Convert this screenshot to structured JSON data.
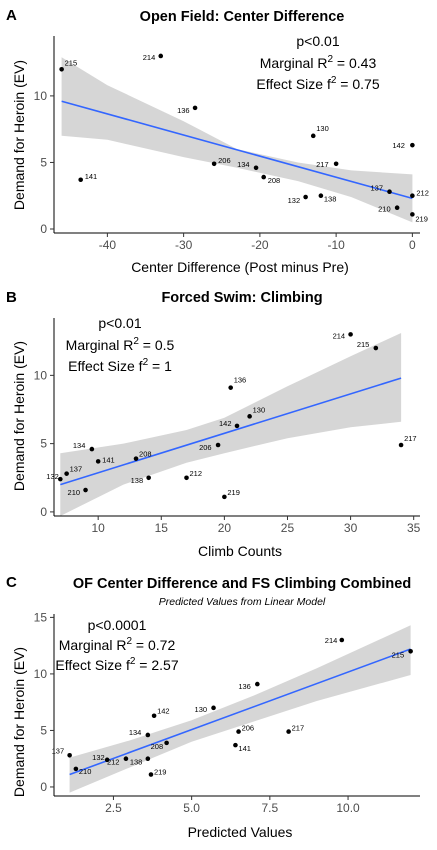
{
  "chart_data": [
    {
      "panel": "A",
      "type": "scatter",
      "title": "Open Field: Center Difference",
      "subtitle": "",
      "xlabel": "Center Difference (Post minus Pre)",
      "ylabel": "Demand for Heroin (EV)",
      "xlim": [
        -47,
        1
      ],
      "ylim": [
        -0.3,
        14.5
      ],
      "xticks": [
        -40,
        -30,
        -20,
        -10,
        0
      ],
      "yticks": [
        0,
        5,
        10
      ],
      "xtick_labels": [
        "-40",
        "-30",
        "-20",
        "-10",
        "0"
      ],
      "ytick_labels": [
        "0",
        "5",
        "10"
      ],
      "stats": {
        "p": "p<0.01",
        "r2_prefix": "Marginal R",
        "r2_value": " = 0.43",
        "f2_prefix": "Effect Size f",
        "f2_value": " = 0.75"
      },
      "fit": {
        "x0": -46,
        "y0": 9.6,
        "x1": 0,
        "y1": 2.3,
        "band": [
          [
            -46,
            7.0,
            12.9
          ],
          [
            -40,
            6.7,
            10.8
          ],
          [
            -30,
            5.4,
            8.1
          ],
          [
            -23,
            4.6,
            6.0
          ],
          [
            -15,
            3.6,
            5.0
          ],
          [
            -8,
            2.4,
            4.4
          ],
          [
            0,
            0.5,
            4.1
          ]
        ]
      },
      "points": [
        {
          "label": "215",
          "x": -46,
          "y": 12.0
        },
        {
          "label": "214",
          "x": -33,
          "y": 13.0
        },
        {
          "label": "136",
          "x": -28.5,
          "y": 9.1
        },
        {
          "label": "141",
          "x": -43.5,
          "y": 3.7
        },
        {
          "label": "130",
          "x": -13,
          "y": 7.0
        },
        {
          "label": "206",
          "x": -26,
          "y": 4.9
        },
        {
          "label": "134",
          "x": -20.5,
          "y": 4.6
        },
        {
          "label": "208",
          "x": -19.5,
          "y": 3.9
        },
        {
          "label": "217",
          "x": -10,
          "y": 4.9
        },
        {
          "label": "142",
          "x": 0,
          "y": 6.3
        },
        {
          "label": "132",
          "x": -14,
          "y": 2.4
        },
        {
          "label": "138",
          "x": -12,
          "y": 2.5
        },
        {
          "label": "137",
          "x": -3,
          "y": 2.8
        },
        {
          "label": "212",
          "x": 0,
          "y": 2.5
        },
        {
          "label": "210",
          "x": -2,
          "y": 1.6
        },
        {
          "label": "219",
          "x": 0,
          "y": 1.1
        }
      ]
    },
    {
      "panel": "B",
      "type": "scatter",
      "title": "Forced Swim: Climbing",
      "subtitle": "",
      "xlabel": "Climb Counts",
      "ylabel": "Demand for Heroin (EV)",
      "xlim": [
        6.5,
        35.5
      ],
      "ylim": [
        -0.3,
        14.2
      ],
      "xticks": [
        10,
        15,
        20,
        25,
        30,
        35
      ],
      "yticks": [
        0,
        5,
        10
      ],
      "xtick_labels": [
        "10",
        "15",
        "20",
        "25",
        "30",
        "35"
      ],
      "ytick_labels": [
        "0",
        "5",
        "10"
      ],
      "stats": {
        "p": "p<0.01",
        "r2_prefix": "Marginal R",
        "r2_value": " = 0.5",
        "f2_prefix": "Effect Size f",
        "f2_value": " = 1"
      },
      "fit": {
        "x0": 7,
        "y0": 2.0,
        "x1": 34,
        "y1": 9.8,
        "band": [
          [
            7,
            -0.3,
            4.3
          ],
          [
            12,
            2.0,
            5.0
          ],
          [
            17,
            3.6,
            6.0
          ],
          [
            20,
            4.3,
            6.9
          ],
          [
            25,
            5.4,
            9.2
          ],
          [
            30,
            6.2,
            11.4
          ],
          [
            34,
            6.6,
            13.1
          ]
        ]
      },
      "points": [
        {
          "label": "214",
          "x": 30,
          "y": 13.0
        },
        {
          "label": "215",
          "x": 32,
          "y": 12.0
        },
        {
          "label": "136",
          "x": 20.5,
          "y": 9.1
        },
        {
          "label": "130",
          "x": 22,
          "y": 7.0
        },
        {
          "label": "142",
          "x": 21,
          "y": 6.3
        },
        {
          "label": "206",
          "x": 19.5,
          "y": 4.9
        },
        {
          "label": "217",
          "x": 34,
          "y": 4.9
        },
        {
          "label": "134",
          "x": 9.5,
          "y": 4.6
        },
        {
          "label": "208",
          "x": 13,
          "y": 3.9
        },
        {
          "label": "141",
          "x": 10,
          "y": 3.7
        },
        {
          "label": "137",
          "x": 7.5,
          "y": 2.8
        },
        {
          "label": "132",
          "x": 7,
          "y": 2.4
        },
        {
          "label": "212",
          "x": 17,
          "y": 2.5
        },
        {
          "label": "138",
          "x": 14,
          "y": 2.5
        },
        {
          "label": "210",
          "x": 9,
          "y": 1.6
        },
        {
          "label": "219",
          "x": 20,
          "y": 1.1
        }
      ]
    },
    {
      "panel": "C",
      "type": "scatter",
      "title": "OF Center Difference and FS Climbing Combined",
      "subtitle": "Predicted Values from Linear Model",
      "xlabel": "Predicted Values",
      "ylabel": "Demand for Heroin (EV)",
      "xlim": [
        0.6,
        12.3
      ],
      "ylim": [
        -0.8,
        15.3
      ],
      "xticks": [
        2.5,
        5.0,
        7.5,
        10.0
      ],
      "yticks": [
        0,
        5,
        10,
        15
      ],
      "xtick_labels": [
        "2.5",
        "5.0",
        "7.5",
        "10.0"
      ],
      "ytick_labels": [
        "0",
        "5",
        "10",
        "15"
      ],
      "stats": {
        "p": "p<0.0001",
        "r2_prefix": "Marginal R",
        "r2_value": " = 0.72",
        "f2_prefix": "Effect Size f",
        "f2_value": " = 2.57"
      },
      "fit": {
        "x0": 1.1,
        "y0": 1.1,
        "x1": 12,
        "y1": 12.2,
        "band": [
          [
            1.1,
            -0.5,
            2.6
          ],
          [
            3,
            1.7,
            4.1
          ],
          [
            5,
            4.0,
            5.9
          ],
          [
            7,
            5.8,
            8.1
          ],
          [
            9,
            7.6,
            10.5
          ],
          [
            12,
            9.9,
            14.3
          ]
        ]
      },
      "points": [
        {
          "label": "214",
          "x": 9.8,
          "y": 13.0
        },
        {
          "label": "215",
          "x": 12,
          "y": 12.0
        },
        {
          "label": "136",
          "x": 7.1,
          "y": 9.1
        },
        {
          "label": "130",
          "x": 5.7,
          "y": 7.0
        },
        {
          "label": "142",
          "x": 3.8,
          "y": 6.3
        },
        {
          "label": "206",
          "x": 6.5,
          "y": 4.9
        },
        {
          "label": "217",
          "x": 8.1,
          "y": 4.9
        },
        {
          "label": "134",
          "x": 3.6,
          "y": 4.6
        },
        {
          "label": "208",
          "x": 4.2,
          "y": 3.9
        },
        {
          "label": "141",
          "x": 6.4,
          "y": 3.7
        },
        {
          "label": "137",
          "x": 1.1,
          "y": 2.8
        },
        {
          "label": "132",
          "x": 2.3,
          "y": 2.4
        },
        {
          "label": "212",
          "x": 2.9,
          "y": 2.5
        },
        {
          "label": "138",
          "x": 3.6,
          "y": 2.5
        },
        {
          "label": "210",
          "x": 1.3,
          "y": 1.6
        },
        {
          "label": "219",
          "x": 3.7,
          "y": 1.1
        }
      ]
    }
  ]
}
